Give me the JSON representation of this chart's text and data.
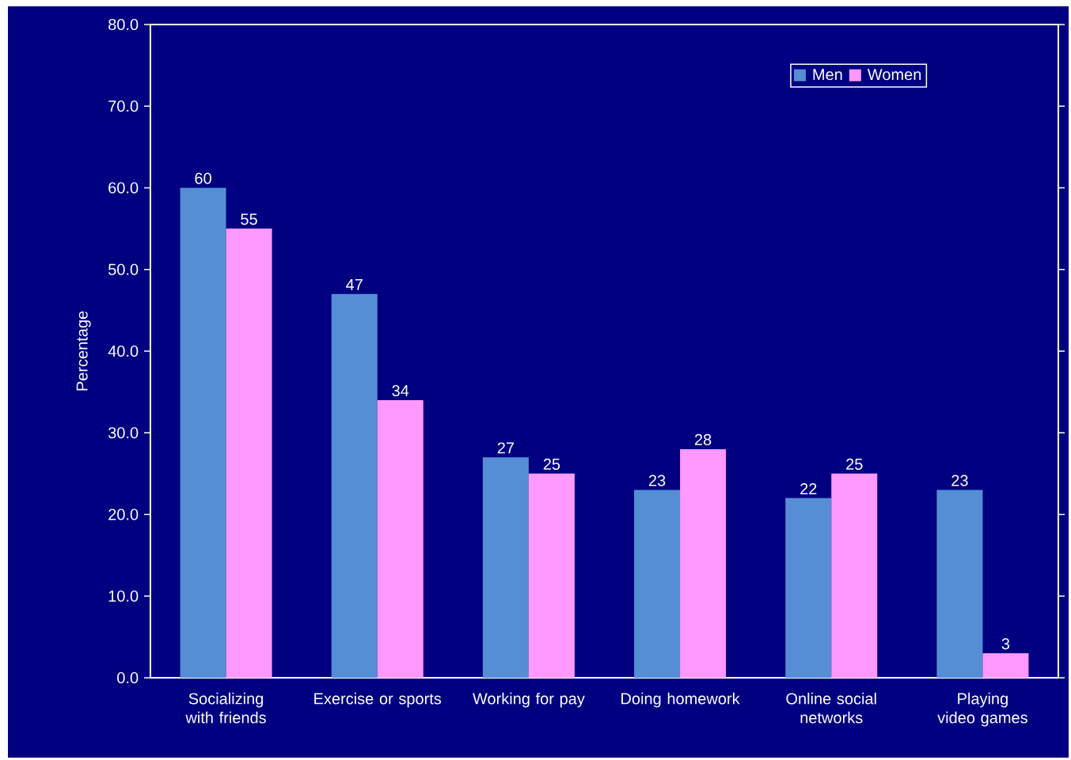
{
  "chart_data": {
    "type": "bar",
    "ylabel": "Percentage",
    "categories": [
      "Socializing with friends",
      "Exercise or sports",
      "Working for pay",
      "Doing homework",
      "Online social networks",
      "Playing video games"
    ],
    "series": [
      {
        "name": "Men",
        "color": "#558ed5",
        "values": [
          60,
          47,
          27,
          23,
          22,
          23
        ]
      },
      {
        "name": "Women",
        "color": "#ff99ff",
        "values": [
          55,
          34,
          25,
          28,
          25,
          3
        ]
      }
    ],
    "ylim": [
      0,
      80
    ],
    "yticks": [
      {
        "value": 0,
        "label": "0.0"
      },
      {
        "value": 10,
        "label": "10.0"
      },
      {
        "value": 20,
        "label": "20.0"
      },
      {
        "value": 30,
        "label": "30.0"
      },
      {
        "value": 40,
        "label": "40.0"
      },
      {
        "value": 50,
        "label": "50.0"
      },
      {
        "value": 60,
        "label": "60.0"
      },
      {
        "value": 70,
        "label": "70.0"
      },
      {
        "value": 80,
        "label": "80.0"
      }
    ],
    "data_labels": true,
    "legend": "top right"
  }
}
